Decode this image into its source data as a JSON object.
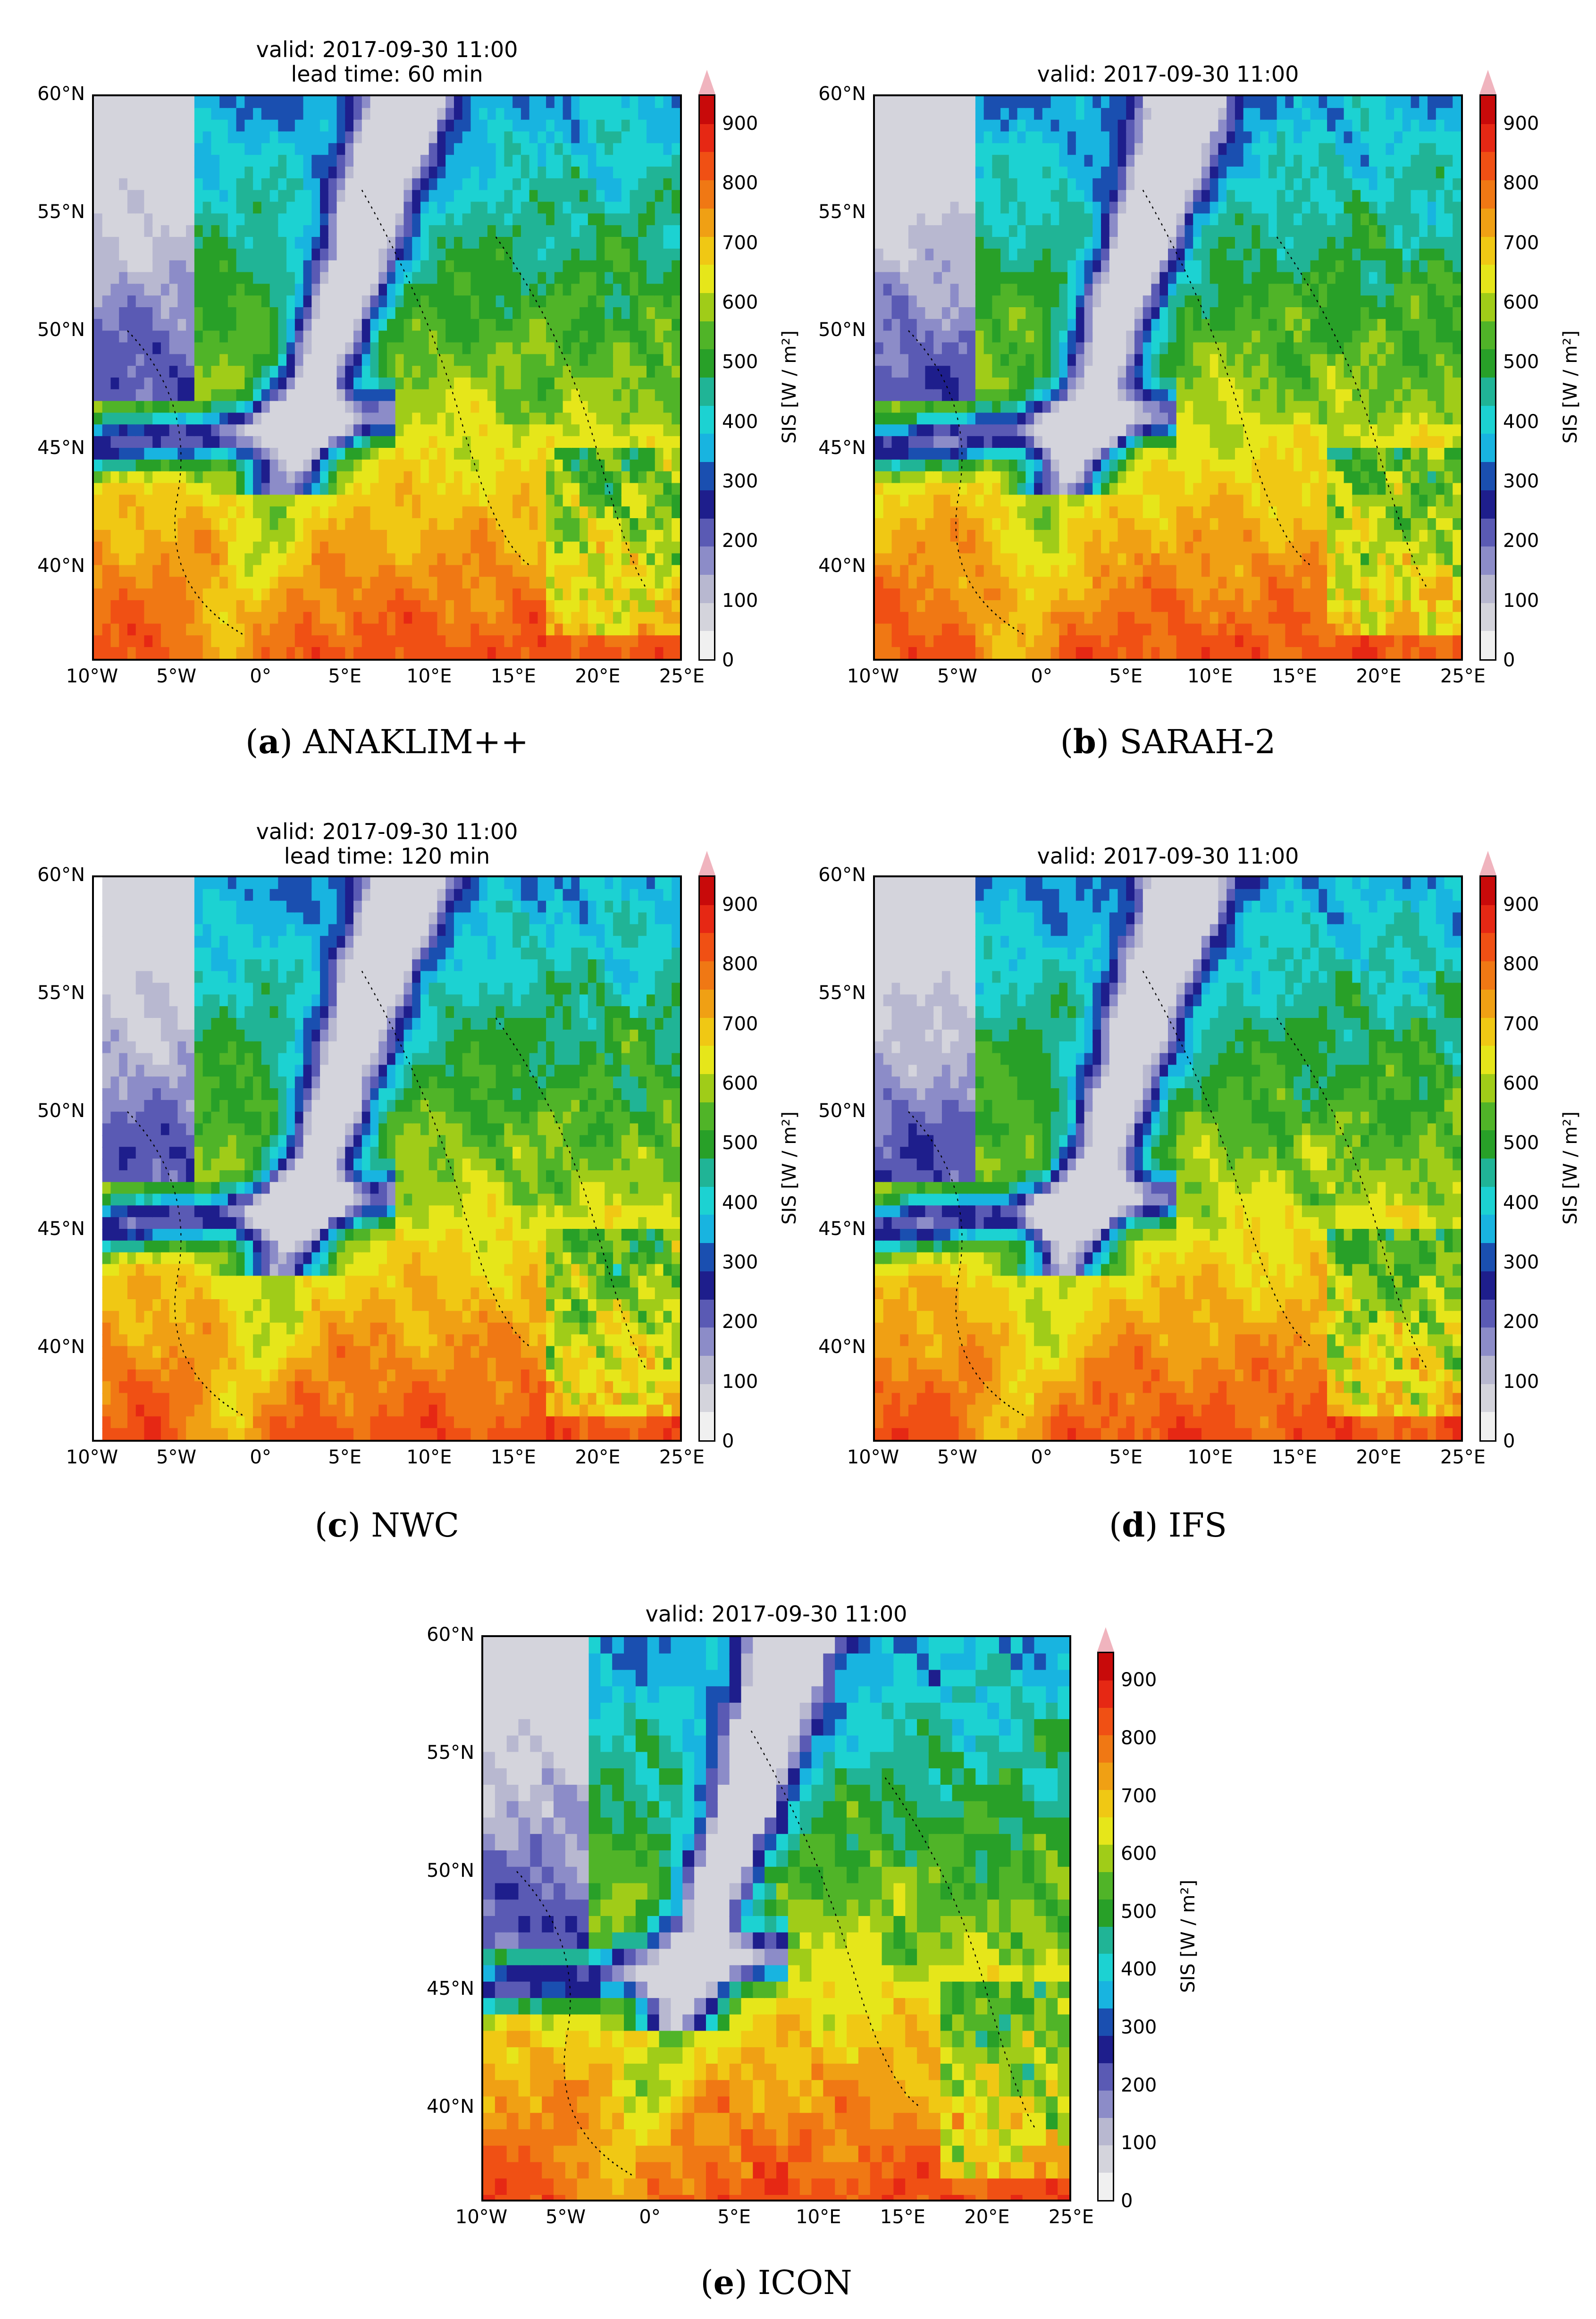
{
  "panels": [
    {
      "id": "a",
      "title_line1": "valid: 2017-09-30 11:00",
      "title_line2": "lead time: 60 min",
      "caption_letter": "a",
      "caption_name": "ANAKLIM++"
    },
    {
      "id": "b",
      "title_line1": "valid: 2017-09-30 11:00",
      "title_line2": "",
      "caption_letter": "b",
      "caption_name": "SARAH-2"
    },
    {
      "id": "c",
      "title_line1": "valid: 2017-09-30 11:00",
      "title_line2": "lead time: 120 min",
      "caption_letter": "c",
      "caption_name": "NWC"
    },
    {
      "id": "d",
      "title_line1": "valid: 2017-09-30 11:00",
      "title_line2": "",
      "caption_letter": "d",
      "caption_name": "IFS"
    },
    {
      "id": "e",
      "title_line1": "valid: 2017-09-30 11:00",
      "title_line2": "",
      "caption_letter": "e",
      "caption_name": "ICON"
    }
  ],
  "axes": {
    "lat_ticks": [
      "60°N",
      "55°N",
      "50°N",
      "45°N",
      "40°N"
    ],
    "lon_ticks": [
      "10°W",
      "5°W",
      "0°",
      "5°E",
      "10°E",
      "15°E",
      "20°E",
      "25°E"
    ],
    "lon_range": [
      -10,
      25
    ],
    "lat_range": [
      36,
      60
    ]
  },
  "colorbar": {
    "label": "SIS [W / m²]",
    "ticks": [
      "900",
      "800",
      "700",
      "600",
      "500",
      "400",
      "300",
      "200",
      "100",
      "0"
    ],
    "levels": [
      0,
      50,
      100,
      150,
      200,
      250,
      300,
      350,
      400,
      450,
      500,
      550,
      600,
      650,
      700,
      750,
      800,
      850,
      900
    ],
    "colors": [
      "#f0f0f0",
      "#d4d4dc",
      "#b8b8d0",
      "#8c8cc8",
      "#5a5ab4",
      "#1e1e8c",
      "#1a4fb0",
      "#18b4e0",
      "#1cd2d2",
      "#20b496",
      "#28a028",
      "#50b428",
      "#a0cc18",
      "#e6e61a",
      "#f0c814",
      "#f0a014",
      "#f07814",
      "#f05014",
      "#e62814",
      "#c80a0a",
      "#960000"
    ],
    "extend_color": "#f0b4be"
  }
}
